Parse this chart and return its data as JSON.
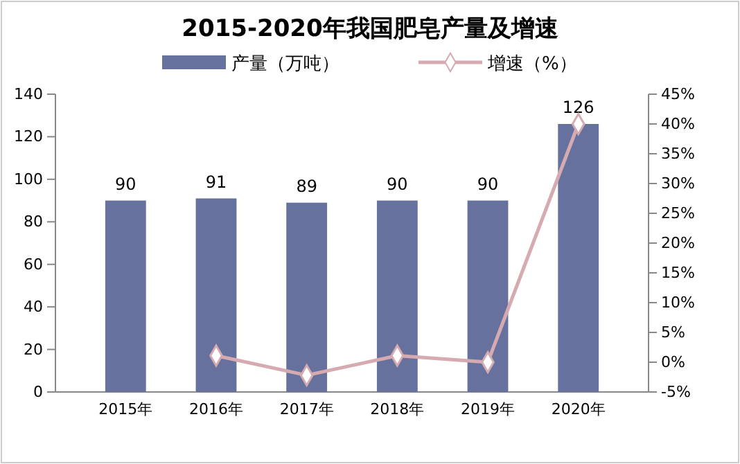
{
  "chart_data": {
    "type": "bar",
    "title": "2015-2020年我国肥皂产量及增速",
    "categories": [
      "2015年",
      "2016年",
      "2017年",
      "2018年",
      "2019年",
      "2020年"
    ],
    "series": [
      {
        "name": "产量（万吨）",
        "color": "#66729d",
        "values": [
          90,
          91,
          89,
          90,
          90,
          126
        ],
        "value_labels": [
          "90",
          "91",
          "89",
          "90",
          "90",
          "126"
        ]
      },
      {
        "name": "增速（%）",
        "type": "line",
        "axis": "y2",
        "color": "#d5aab0",
        "marker": "diamond",
        "values": [
          null,
          1.1,
          -2.2,
          1.1,
          0,
          40
        ]
      }
    ],
    "ylim": [
      0,
      140
    ],
    "yticks": [
      0,
      20,
      40,
      60,
      80,
      100,
      120,
      140
    ],
    "y2lim": [
      -5,
      45
    ],
    "y2ticks": [
      {
        "value": -5,
        "label": "-5%"
      },
      {
        "value": 0,
        "label": "0%"
      },
      {
        "value": 5,
        "label": "5%"
      },
      {
        "value": 10,
        "label": "10%"
      },
      {
        "value": 15,
        "label": "15%"
      },
      {
        "value": 20,
        "label": "20%"
      },
      {
        "value": 25,
        "label": "25%"
      },
      {
        "value": 30,
        "label": "30%"
      },
      {
        "value": 35,
        "label": "35%"
      },
      {
        "value": 40,
        "label": "40%"
      },
      {
        "value": 45,
        "label": "45%"
      }
    ],
    "legend": "top",
    "grid": false
  }
}
